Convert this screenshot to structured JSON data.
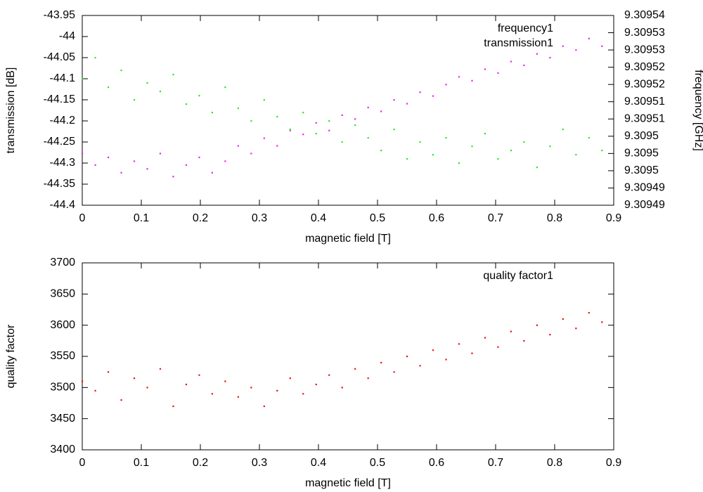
{
  "chart_data": [
    {
      "type": "scatter",
      "xlabel": "magnetic field [T]",
      "ylabel": "transmission [dB]",
      "y2label": "frequency [GHz]",
      "xlim": [
        0,
        0.9
      ],
      "xticks": [
        0,
        0.1,
        0.2,
        0.3,
        0.4,
        0.5,
        0.6,
        0.7,
        0.8,
        0.9
      ],
      "ylim": [
        -44.4,
        -43.95
      ],
      "yticks": [
        -43.95,
        -44,
        -44.05,
        -44.1,
        -44.15,
        -44.2,
        -44.25,
        -44.3,
        -44.35,
        -44.4
      ],
      "y2lim": [
        9.3094865,
        9.309536
      ],
      "y2ticks": [
        {
          "value": 9.309536,
          "label": "9.30954"
        },
        {
          "value": 9.3095315,
          "label": "9.30953"
        },
        {
          "value": 9.309527,
          "label": "9.30953"
        },
        {
          "value": 9.3095225,
          "label": "9.30952"
        },
        {
          "value": 9.309518,
          "label": "9.30952"
        },
        {
          "value": 9.3095135,
          "label": "9.30951"
        },
        {
          "value": 9.309509,
          "label": "9.30951"
        },
        {
          "value": 9.3095045,
          "label": "9.3095"
        },
        {
          "value": 9.3095,
          "label": "9.3095"
        },
        {
          "value": 9.3094955,
          "label": "9.3095"
        },
        {
          "value": 9.309491,
          "label": "9.30949"
        },
        {
          "value": 9.3094865,
          "label": "9.30949"
        }
      ],
      "legend": "top right",
      "x": [
        0,
        0.022,
        0.044,
        0.066,
        0.088,
        0.11,
        0.132,
        0.154,
        0.176,
        0.198,
        0.22,
        0.242,
        0.264,
        0.286,
        0.308,
        0.33,
        0.352,
        0.374,
        0.396,
        0.418,
        0.44,
        0.462,
        0.484,
        0.506,
        0.528,
        0.55,
        0.572,
        0.594,
        0.616,
        0.638,
        0.66,
        0.682,
        0.704,
        0.726,
        0.748,
        0.77,
        0.792,
        0.814,
        0.836,
        0.858,
        0.88
      ],
      "series": [
        {
          "name": "frequency1",
          "color": "#ee22ee",
          "axis": "y2",
          "values": [
            9.3095,
            9.309497,
            9.309499,
            9.309495,
            9.309498,
            9.309496,
            9.3095,
            9.309494,
            9.309497,
            9.309499,
            9.309495,
            9.309498,
            9.309502,
            9.3095,
            9.309504,
            9.309502,
            9.309506,
            9.309505,
            9.309508,
            9.309506,
            9.30951,
            9.309509,
            9.309512,
            9.309511,
            9.309514,
            9.309513,
            9.309516,
            9.309515,
            9.309518,
            9.30952,
            9.309519,
            9.309522,
            9.309521,
            9.309524,
            9.309523,
            9.309526,
            9.309525,
            9.309528,
            9.309527,
            9.30953,
            9.309528
          ]
        },
        {
          "name": "transmission1",
          "color": "#22ee22",
          "values": [
            -44.1,
            -44.05,
            -44.12,
            -44.08,
            -44.15,
            -44.11,
            -44.13,
            -44.09,
            -44.16,
            -44.14,
            -44.18,
            -44.12,
            -44.17,
            -44.2,
            -44.15,
            -44.19,
            -44.22,
            -44.18,
            -44.23,
            -44.2,
            -44.25,
            -44.21,
            -44.24,
            -44.27,
            -44.22,
            -44.29,
            -44.25,
            -44.28,
            -44.24,
            -44.3,
            -44.26,
            -44.23,
            -44.29,
            -44.27,
            -44.25,
            -44.31,
            -44.26,
            -44.22,
            -44.28,
            -44.24,
            -44.27
          ]
        }
      ]
    },
    {
      "type": "scatter",
      "xlabel": "magnetic field [T]",
      "ylabel": "quality factor",
      "xlim": [
        0,
        0.9
      ],
      "xticks": [
        0,
        0.1,
        0.2,
        0.3,
        0.4,
        0.5,
        0.6,
        0.7,
        0.8,
        0.9
      ],
      "ylim": [
        3400,
        3700
      ],
      "yticks": [
        3400,
        3450,
        3500,
        3550,
        3600,
        3650,
        3700
      ],
      "legend": "top right",
      "x": [
        0,
        0.022,
        0.044,
        0.066,
        0.088,
        0.11,
        0.132,
        0.154,
        0.176,
        0.198,
        0.22,
        0.242,
        0.264,
        0.286,
        0.308,
        0.33,
        0.352,
        0.374,
        0.396,
        0.418,
        0.44,
        0.462,
        0.484,
        0.506,
        0.528,
        0.55,
        0.572,
        0.594,
        0.616,
        0.638,
        0.66,
        0.682,
        0.704,
        0.726,
        0.748,
        0.77,
        0.792,
        0.814,
        0.836,
        0.858,
        0.88
      ],
      "series": [
        {
          "name": "quality factor1",
          "color": "#ee1111",
          "values": [
            3510,
            3495,
            3525,
            3480,
            3515,
            3500,
            3530,
            3470,
            3505,
            3520,
            3490,
            3510,
            3485,
            3500,
            3470,
            3495,
            3515,
            3490,
            3505,
            3520,
            3500,
            3530,
            3515,
            3540,
            3525,
            3550,
            3535,
            3560,
            3545,
            3570,
            3555,
            3580,
            3565,
            3590,
            3575,
            3600,
            3585,
            3610,
            3595,
            3620,
            3605
          ]
        }
      ]
    }
  ]
}
